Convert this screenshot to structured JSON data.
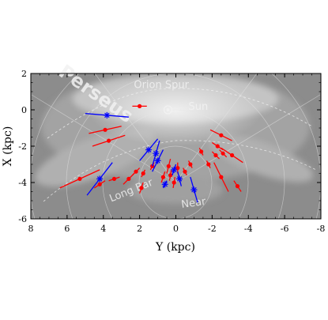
{
  "chart_data": {
    "type": "scatter",
    "title": "",
    "xlabel": "Y (kpc)",
    "ylabel": "X (kpc)",
    "xlim": [
      8,
      -8
    ],
    "ylim": [
      2,
      -6
    ],
    "x_ticks": [
      8,
      6,
      4,
      2,
      0,
      -2,
      -4,
      -6,
      -8
    ],
    "y_ticks": [
      2,
      0,
      -2,
      -4,
      -6
    ],
    "grid": false,
    "background": "grayscale map of the Milky Way with spiral-arm features",
    "annotations": [
      {
        "text": "Perseus",
        "x": 4.6,
        "y": 0.6
      },
      {
        "text": "Long Bar",
        "x": 2.4,
        "y": -4.6
      },
      {
        "text": "Near",
        "x": -1.0,
        "y": -5.3
      },
      {
        "text": "Sun",
        "x": -0.7,
        "y": 0.0
      },
      {
        "text": "Orion Spur",
        "x": 0.8,
        "y": 1.2
      }
    ],
    "colors": {
      "red_series": "#ff0000",
      "blue_series": "#0000ff"
    },
    "series": [
      {
        "marker": "dot",
        "color": "#ff0000",
        "points": [
          {
            "x": 5.3,
            "y": -3.8,
            "dx": 1.1,
            "dy": -0.5
          },
          {
            "x": 4.2,
            "y": -4.1,
            "dx": 0.3,
            "dy": -0.2
          },
          {
            "x": 3.4,
            "y": -3.8,
            "dx": 0.3,
            "dy": -0.1
          },
          {
            "x": 2.6,
            "y": -3.8,
            "dx": 0.3,
            "dy": -0.3
          },
          {
            "x": 2.2,
            "y": -3.4,
            "dx": 0.2,
            "dy": -0.2
          },
          {
            "x": 1.9,
            "y": -4.3,
            "dx": 0.1,
            "dy": -0.3
          },
          {
            "x": 1.8,
            "y": -3.5,
            "dx": 0.1,
            "dy": -0.2
          },
          {
            "x": 1.3,
            "y": -3.1,
            "dx": 0.1,
            "dy": -0.2
          },
          {
            "x": 0.7,
            "y": -3.7,
            "dx": 0.1,
            "dy": -0.3
          },
          {
            "x": 0.4,
            "y": -3.1,
            "dx": 0.1,
            "dy": -0.4
          },
          {
            "x": 0.3,
            "y": -3.6,
            "dx": 0.05,
            "dy": -0.3
          },
          {
            "x": 0.1,
            "y": -4.0,
            "dx": 0.05,
            "dy": -0.3
          },
          {
            "x": -0.1,
            "y": -3.2,
            "dx": 0.0,
            "dy": -0.3
          },
          {
            "x": -0.5,
            "y": -3.4,
            "dx": -0.1,
            "dy": -0.2
          },
          {
            "x": -0.8,
            "y": -3.0,
            "dx": -0.1,
            "dy": -0.2
          },
          {
            "x": -1.4,
            "y": -2.3,
            "dx": -0.1,
            "dy": -0.2
          },
          {
            "x": -1.8,
            "y": -3.0,
            "dx": -0.1,
            "dy": -0.2
          },
          {
            "x": -2.2,
            "y": -2.5,
            "dx": -0.2,
            "dy": -0.2
          },
          {
            "x": -2.5,
            "y": -3.7,
            "dx": -0.4,
            "dy": -0.8
          },
          {
            "x": -2.6,
            "y": -2.4,
            "dx": -0.2,
            "dy": -0.2
          },
          {
            "x": -2.3,
            "y": -2.0,
            "dx": -0.3,
            "dy": -0.2
          },
          {
            "x": -3.1,
            "y": -2.5,
            "dx": -0.6,
            "dy": -0.4
          },
          {
            "x": -2.5,
            "y": -1.4,
            "dx": -0.6,
            "dy": -0.3
          },
          {
            "x": -3.4,
            "y": -4.2,
            "dx": -0.2,
            "dy": -0.3
          },
          {
            "x": 3.7,
            "y": -1.7,
            "dx": 0.9,
            "dy": -0.3
          },
          {
            "x": 3.9,
            "y": -1.1,
            "dx": 0.9,
            "dy": -0.2
          },
          {
            "x": 2.0,
            "y": 0.2,
            "dx": 0.4,
            "dy": 0.0
          }
        ]
      },
      {
        "marker": "asterisk",
        "color": "#0000ff",
        "points": [
          {
            "x": 4.2,
            "y": -3.8,
            "dx": 0.7,
            "dy": -0.9
          },
          {
            "x": 1.5,
            "y": -2.2,
            "dx": 0.5,
            "dy": -0.6
          },
          {
            "x": 1.0,
            "y": -2.8,
            "dx": 0.3,
            "dy": -0.6
          },
          {
            "x": 1.1,
            "y": -2.4,
            "dx": 0.2,
            "dy": -0.7
          },
          {
            "x": 0.6,
            "y": -4.1,
            "dx": 0.1,
            "dy": -0.2
          },
          {
            "x": 0.1,
            "y": -3.3,
            "dx": 0.1,
            "dy": -0.3
          },
          {
            "x": -0.2,
            "y": -3.8,
            "dx": -0.1,
            "dy": -0.4
          },
          {
            "x": -1.0,
            "y": -4.4,
            "dx": -0.2,
            "dy": -0.7
          },
          {
            "x": 3.8,
            "y": -0.3,
            "dx": 1.2,
            "dy": 0.1
          }
        ]
      }
    ]
  }
}
